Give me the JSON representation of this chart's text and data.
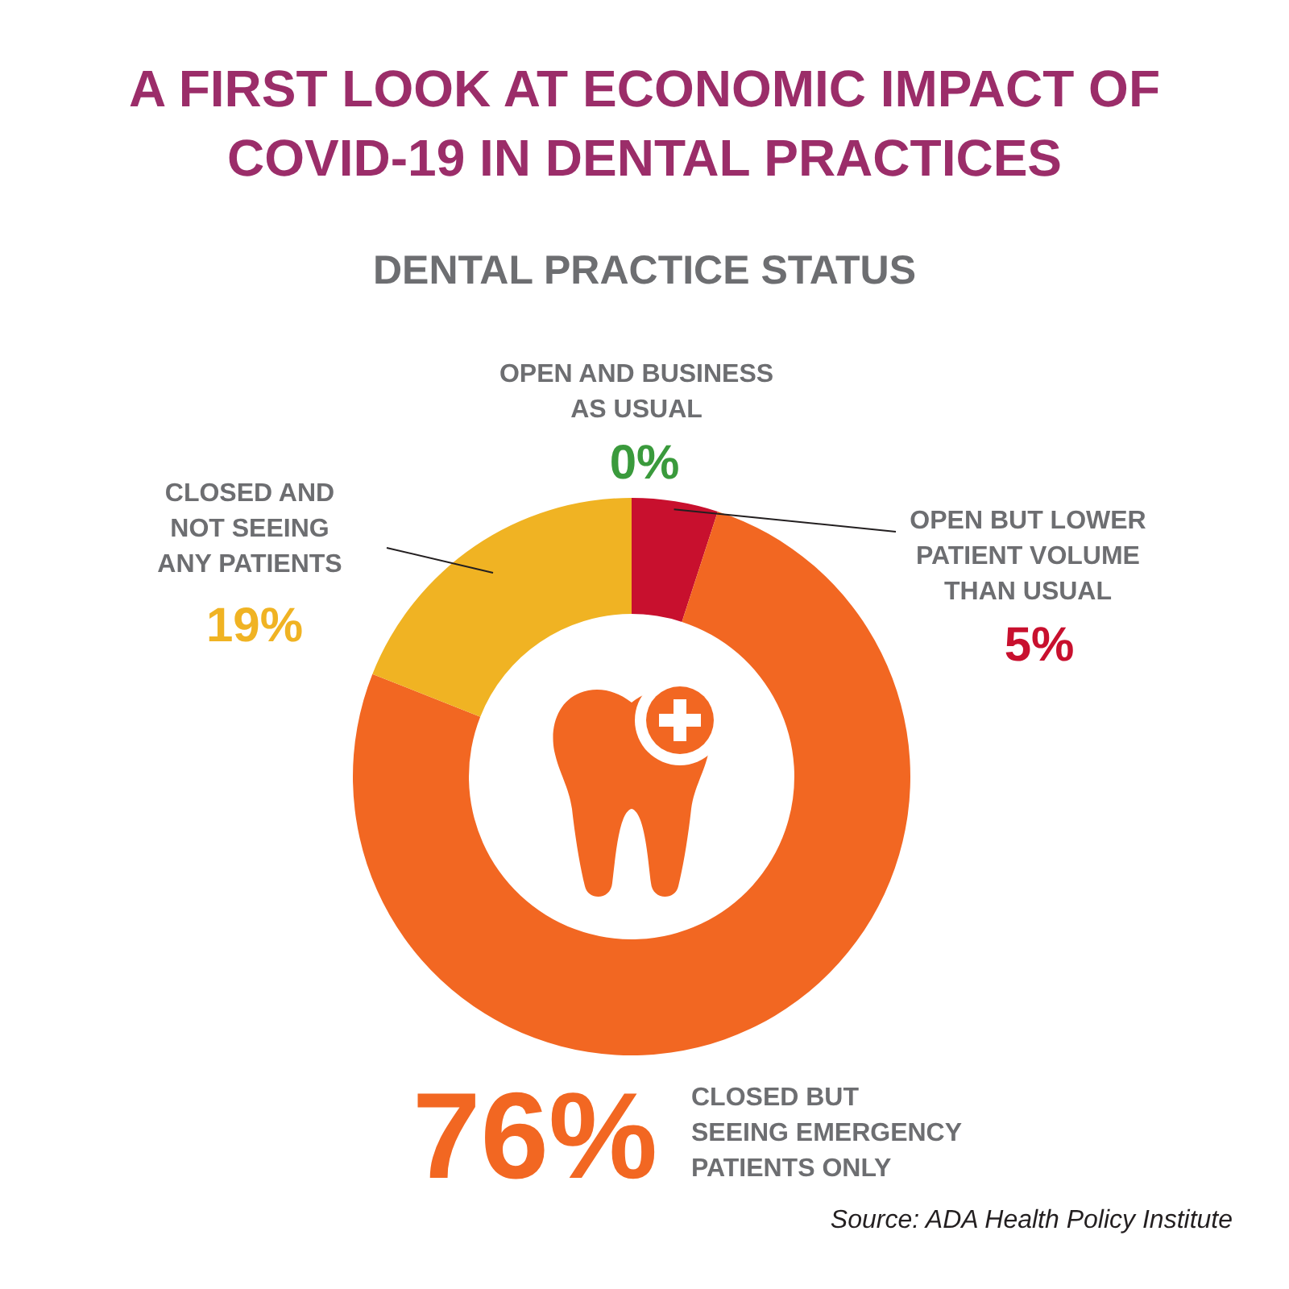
{
  "chart_data": {
    "type": "donut",
    "title": "A FIRST LOOK AT ECONOMIC IMPACT OF COVID-19 IN DENTAL PRACTICES",
    "subtitle": "DENTAL PRACTICE STATUS",
    "categories": [
      "OPEN AND BUSINESS AS USUAL",
      "OPEN BUT LOWER PATIENT VOLUME THAN USUAL",
      "CLOSED BUT SEEING EMERGENCY PATIENTS ONLY",
      "CLOSED AND NOT SEEING ANY PATIENTS"
    ],
    "values": [
      0,
      5,
      76,
      19
    ],
    "colors": [
      "#3a9a3c",
      "#c8102e",
      "#f26722",
      "#f0b323"
    ],
    "value_labels": [
      "0%",
      "5%",
      "76%",
      "19%"
    ],
    "annotations": [
      "Source: ADA Health Policy Institute"
    ]
  }
}
